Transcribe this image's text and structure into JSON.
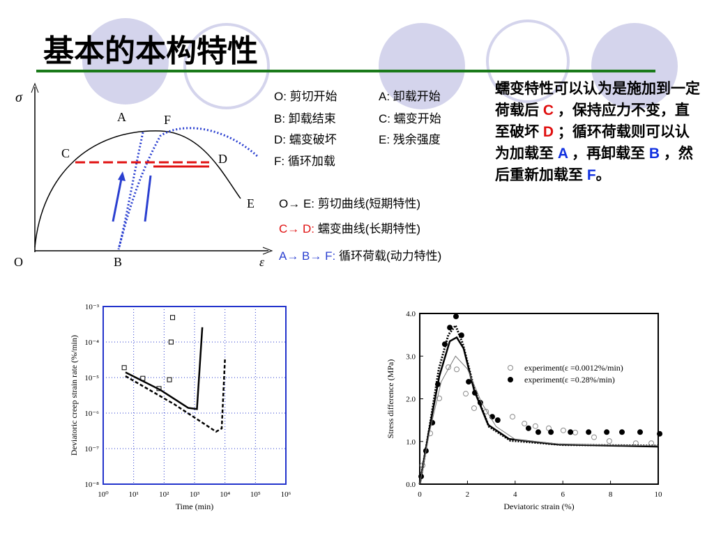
{
  "slide": {
    "title": "基本的本构特性",
    "diagram": {
      "sigma": "σ",
      "epsilon": "ε",
      "O": "O",
      "A": "A",
      "B": "B",
      "C": "C",
      "D": "D",
      "E": "E",
      "F": "F"
    },
    "key": [
      "O:  剪切开始",
      "A:  卸载开始",
      "B:  卸载结束",
      "C:  蠕变开始",
      "D:  蠕变破坏",
      "E:  残余强度",
      "F:  循环加载"
    ],
    "paths": [
      {
        "from": "O→ E:",
        "text": "剪切曲线(短期特性)"
      },
      {
        "from": "C→ D:",
        "text": "蠕变曲线(长期特性)"
      },
      {
        "from": "A→ B→ F:",
        "text": "循环荷载(动力特性)"
      }
    ],
    "paragraph": [
      "蠕变特性可以认为是施加到一定荷载后 ",
      "C",
      " ，保持应力不变，直至破坏 ",
      "D",
      " ；循环荷载则可以认为加载至 ",
      "A",
      " ，再卸载至 ",
      "B",
      " ，然后重新加载至 ",
      "F",
      "。"
    ]
  },
  "chart_data": [
    {
      "type": "scatter",
      "xlabel": "Time (min)",
      "ylabel": "Deviatoric creep strain rate (%/min)",
      "xlog": true,
      "ylog": true,
      "grid": true,
      "xlim": [
        1,
        1000000
      ],
      "ylim": [
        1e-08,
        0.001
      ],
      "xticks": [
        {
          "value": 1,
          "label": "10⁰"
        },
        {
          "value": 10,
          "label": "10¹"
        },
        {
          "value": 100,
          "label": "10²"
        },
        {
          "value": 1000,
          "label": "10³"
        },
        {
          "value": 10000,
          "label": "10⁴"
        },
        {
          "value": 100000,
          "label": "10⁵"
        },
        {
          "value": 1000000,
          "label": "10⁶"
        }
      ],
      "yticks": [
        {
          "value": 1e-08,
          "label": "10⁻⁸"
        },
        {
          "value": 1e-07,
          "label": "10⁻⁷"
        },
        {
          "value": 1e-06,
          "label": "10⁻⁶"
        },
        {
          "value": 1e-05,
          "label": "10⁻⁵"
        },
        {
          "value": 0.0001,
          "label": "10⁻⁴"
        },
        {
          "value": 0.001,
          "label": "10⁻³"
        }
      ],
      "series": [
        {
          "color": "#000000",
          "marker": "square",
          "x": [
            4.9,
            20,
            68,
            150,
            170,
            190
          ],
          "values": [
            1.9e-05,
            9.5e-06,
            4.9e-06,
            8.7e-06,
            0.0001,
            0.00049
          ]
        },
        {
          "color": "#000000",
          "line": "solid",
          "x": [
            5.4,
            75,
            620,
            1200,
            1800
          ],
          "values": [
            1.4e-05,
            4.5e-06,
            1.4e-06,
            1.3e-06,
            0.00026
          ]
        },
        {
          "color": "#000000",
          "line": "dashed",
          "x": [
            5.4,
            210,
            5100,
            7800,
            10000
          ],
          "values": [
            1.1e-05,
            1.8e-06,
            3e-07,
            3.7e-07,
            3.4e-05
          ]
        }
      ]
    },
    {
      "type": "scatter",
      "xlabel": "Deviatoric strain (%)",
      "ylabel": "Stress difference (MPa)",
      "xlim": [
        0,
        10
      ],
      "ylim": [
        0,
        4
      ],
      "xticks": [
        0,
        2,
        4,
        6,
        8,
        10
      ],
      "yticks": [
        {
          "value": 0,
          "label": "0.0"
        },
        {
          "value": 1,
          "label": "1.0"
        },
        {
          "value": 2,
          "label": "2.0"
        },
        {
          "value": 3,
          "label": "3.0"
        },
        {
          "value": 4,
          "label": "4.0"
        }
      ],
      "series": [
        {
          "name": "experiment(ε =0.0012%/min)",
          "color": "#888888",
          "marker": "circle-open",
          "x": [
            0.12,
            0.44,
            0.82,
            1.2,
            1.55,
            1.93,
            2.28,
            2.78,
            3.89,
            4.39,
            4.85,
            5.41,
            6.02,
            6.52,
            7.31,
            7.95,
            9.06,
            9.71
          ],
          "values": [
            0.44,
            1.19,
            2.01,
            2.74,
            2.69,
            2.12,
            1.78,
            1.7,
            1.58,
            1.42,
            1.36,
            1.31,
            1.26,
            1.21,
            1.1,
            1.01,
            0.96,
            0.96
          ]
        },
        {
          "name": "experiment(ε =0.28%/min)",
          "color": "#000000",
          "marker": "circle-filled",
          "x": [
            0.06,
            0.26,
            0.53,
            0.76,
            1.05,
            1.26,
            1.52,
            1.75,
            2.05,
            2.31,
            2.54,
            3.04,
            3.27,
            4.56,
            4.97,
            5.5,
            6.32,
            7.08,
            7.84,
            8.48,
            9.24,
            10.06
          ],
          "values": [
            0.18,
            0.78,
            1.44,
            2.34,
            3.28,
            3.67,
            3.93,
            3.49,
            2.4,
            2.14,
            1.91,
            1.58,
            1.5,
            1.31,
            1.22,
            1.22,
            1.22,
            1.22,
            1.22,
            1.22,
            1.22,
            1.18
          ]
        },
        {
          "color": "#000000",
          "line": "solid",
          "x": [
            0,
            0.38,
            0.82,
            1.26,
            1.55,
            1.84,
            2.28,
            2.87,
            3.74,
            5.79,
            10
          ],
          "values": [
            0,
            1.22,
            2.53,
            3.35,
            3.44,
            3.18,
            2.2,
            1.39,
            1.06,
            0.93,
            0.88
          ]
        },
        {
          "color": "#000000",
          "line": "dotted",
          "x": [
            0,
            0.4,
            0.8,
            1.2,
            1.5,
            1.8,
            2.3,
            2.9,
            3.8,
            6,
            10
          ],
          "values": [
            0,
            1.3,
            2.7,
            3.5,
            3.72,
            3.3,
            2.2,
            1.35,
            1.02,
            0.92,
            0.9
          ]
        },
        {
          "color": "#777777",
          "line": "thin",
          "x": [
            0,
            0.4,
            0.9,
            1.5,
            2,
            2.6,
            3.2,
            4,
            6,
            10
          ],
          "values": [
            0,
            1.2,
            2.4,
            3,
            2.7,
            1.9,
            1.35,
            1.05,
            0.93,
            0.9
          ]
        }
      ]
    }
  ]
}
